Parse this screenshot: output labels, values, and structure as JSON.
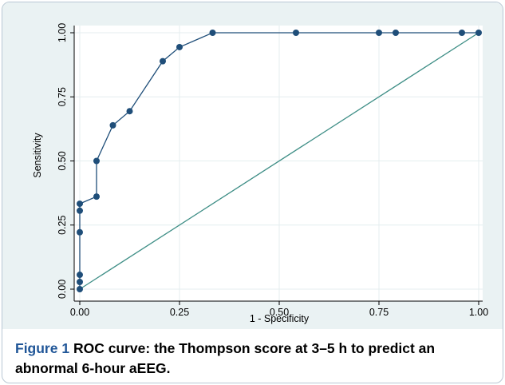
{
  "caption": {
    "label": "Figure 1",
    "text": " ROC curve: the Thompson score at 3–5 h to predict an abnormal 6-hour aEEG."
  },
  "colors": {
    "background": "#eaf2f3",
    "curve": "#1f4e79",
    "reference_line": "#3e8e86",
    "grid": "#ffffff",
    "caption_label": "#1f5597",
    "frame_border": "#b9c7d4"
  },
  "chart_data": {
    "type": "line",
    "title": "",
    "xlabel": "1 - Specificity",
    "ylabel": "Sensitivity",
    "xlim": [
      0,
      1
    ],
    "ylim": [
      0,
      1
    ],
    "x_ticks": [
      "0.00",
      "0.25",
      "0.50",
      "0.75",
      "1.00"
    ],
    "y_ticks": [
      "0.00",
      "0.25",
      "0.50",
      "0.75",
      "1.00"
    ],
    "grid": true,
    "legend": "none",
    "series": [
      {
        "type": "line",
        "markers": true,
        "x": [
          0.0,
          0.0,
          0.0,
          0.0,
          0.0,
          0.0,
          0.042,
          0.042,
          0.083,
          0.125,
          0.208,
          0.25,
          0.333,
          0.542,
          0.75,
          0.792,
          0.958,
          1.0
        ],
        "y": [
          0.0,
          0.028,
          0.056,
          0.222,
          0.306,
          0.333,
          0.361,
          0.5,
          0.639,
          0.694,
          0.889,
          0.944,
          1.0,
          1.0,
          1.0,
          1.0,
          1.0,
          1.0
        ]
      },
      {
        "type": "line",
        "markers": false,
        "x": [
          0,
          1
        ],
        "y": [
          0,
          1
        ]
      }
    ]
  }
}
